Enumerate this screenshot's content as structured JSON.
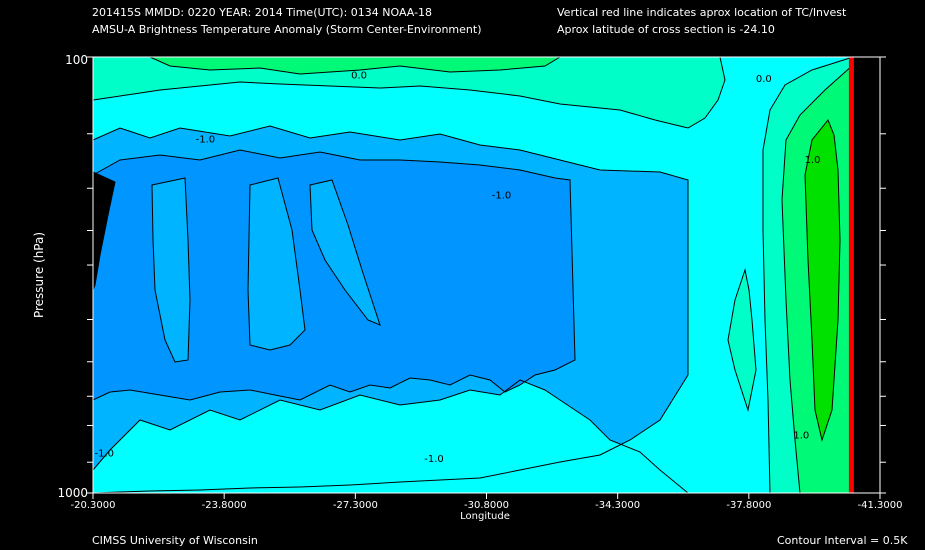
{
  "header": {
    "line1_left": "201415S  MMDD: 0220 YEAR: 2014 Time(UTC): 0134 NOAA-18",
    "line2_left": "AMSU-A Brightness Temperature Anomaly (Storm Center-Environment)",
    "line1_right": "Vertical red line indicates aprox location of TC/Invest",
    "line2_right": "Aprox latitude of cross section is -24.10"
  },
  "footer": {
    "left": "CIMSS University of Wisconsin",
    "right": "Contour Interval = 0.5K"
  },
  "colors": {
    "background": "#000000",
    "fill_lt_minus1": "#0095FF",
    "fill_minus1_to_minus0_5": "#00B4FF",
    "fill_minus0_5_to_0": "#00FFFF",
    "fill_0_to_0_5": "#00FFC8",
    "fill_0_5_to_1": "#00FA78",
    "fill_gt_1": "#00E100",
    "missing": "#000000",
    "storm_line": "#FF0000",
    "contour": "#000000"
  },
  "chart_data": {
    "type": "heatmap",
    "subtype": "contour cross-section",
    "xlabel": "Longitude",
    "ylabel": "Pressure (hPa)",
    "x_ticks": [
      "-20.3000",
      "-23.8000",
      "-27.3000",
      "-30.8000",
      "-34.3000",
      "-37.8000",
      "-41.3000"
    ],
    "x_range": [
      -20.3,
      -41.3
    ],
    "y_range": [
      100,
      1000
    ],
    "y_scale": "log",
    "y_ticks_labeled": [
      "100",
      "1000"
    ],
    "y_minor_ticks": [
      150,
      200,
      250,
      300,
      400,
      500,
      600,
      700,
      850
    ],
    "storm_longitude": -40.55,
    "contour_labels": [
      {
        "text": "0.0",
        "lon": -27.4,
        "p": 112
      },
      {
        "text": "0.0",
        "lon": -38.2,
        "p": 114
      },
      {
        "text": "-1.0",
        "lon": -23.3,
        "p": 157
      },
      {
        "text": "-1.0",
        "lon": -31.2,
        "p": 211
      },
      {
        "text": "1.0",
        "lon": -39.5,
        "p": 175
      },
      {
        "text": "-1.0",
        "lon": -29.4,
        "p": 850
      },
      {
        "text": "-1.0",
        "lon": -20.6,
        "p": 825
      },
      {
        "text": "1.0",
        "lon": -39.2,
        "p": 750
      }
    ]
  }
}
